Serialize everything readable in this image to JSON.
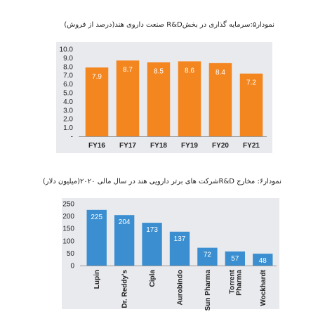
{
  "chart_data": [
    {
      "type": "bar",
      "title": "نمودار۵:سرمایه گذاری در بخشR&D  صنعت داروی هند(درصد از فروش)",
      "categories": [
        "FY16",
        "FY17",
        "FY18",
        "FY19",
        "FY20",
        "FY21"
      ],
      "values": [
        7.9,
        8.7,
        8.5,
        8.6,
        8.4,
        7.2
      ],
      "data_labels": [
        "7.9",
        "8.7",
        "8.5",
        "8.6",
        "8.4",
        "7.2"
      ],
      "yticks": [
        "10.0",
        "9.0",
        "8.0",
        "7.0",
        "6.0",
        "5.0",
        "4.0",
        "3.0",
        "2.0",
        "1.0",
        "-"
      ],
      "ylim": [
        0,
        10
      ],
      "color": "#f4861f",
      "grid": false,
      "legend": "none"
    },
    {
      "type": "bar",
      "title": "نمودار۶: مخارج  R&Dشرکت های برتر دارویی هند در سال مالی ۲۰۲۰(میلیون دلار)",
      "categories": [
        "Lupin",
        "Dr. Reddy's",
        "Cipla",
        "Aurobindo",
        "Sun Pharma",
        "Torrent Pharma",
        "Wockhardt"
      ],
      "values": [
        225,
        204,
        173,
        137,
        72,
        57,
        48
      ],
      "data_labels": [
        "225",
        "204",
        "173",
        "137",
        "72",
        "57",
        "48"
      ],
      "yticks": [
        "250",
        "200",
        "150",
        "100",
        "50",
        "0"
      ],
      "ylim": [
        0,
        250
      ],
      "color": "#3b8fd0",
      "grid": false,
      "legend": "none"
    }
  ]
}
